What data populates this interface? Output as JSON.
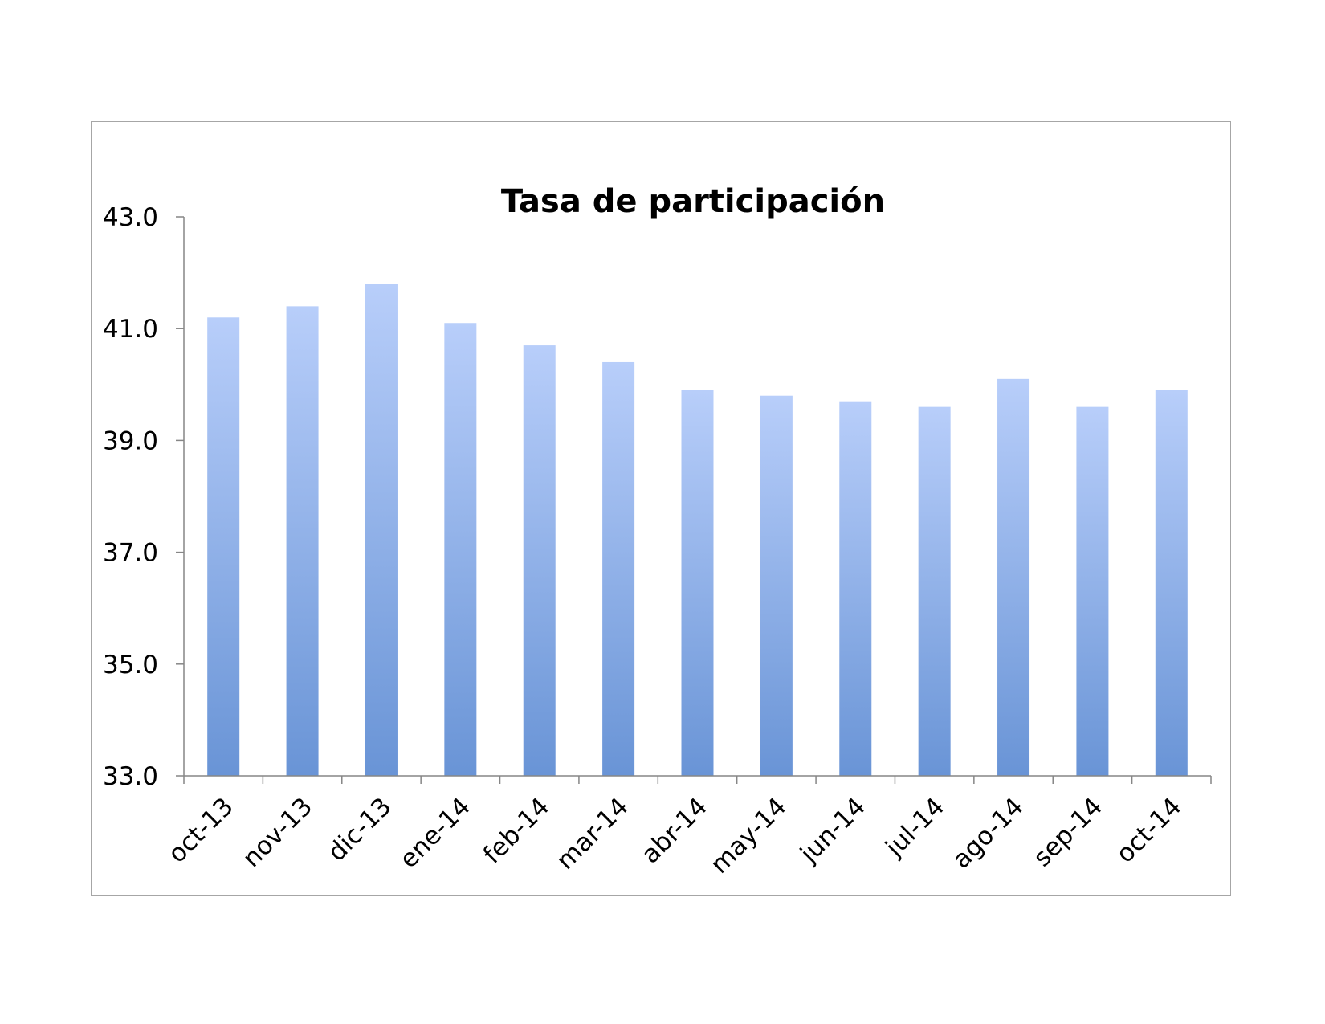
{
  "chart_data": {
    "type": "bar",
    "title": "Tasa de participación",
    "xlabel": "",
    "ylabel": "",
    "categories": [
      "oct-13",
      "nov-13",
      "dic-13",
      "ene-14",
      "feb-14",
      "mar-14",
      "abr-14",
      "may-14",
      "jun-14",
      "jul-14",
      "ago-14",
      "sep-14",
      "oct-14"
    ],
    "values": [
      41.2,
      41.4,
      41.8,
      41.1,
      40.7,
      40.4,
      39.9,
      39.8,
      39.7,
      39.6,
      40.1,
      39.6,
      39.9
    ],
    "ylim": [
      33.0,
      43.0
    ],
    "yticks": [
      "33.0",
      "35.0",
      "37.0",
      "39.0",
      "41.0",
      "43.0"
    ],
    "grid": false,
    "legend": "none",
    "bar_color_top": "#b8cefa",
    "bar_color_bottom": "#6994d6",
    "axis_color": "#868686"
  }
}
